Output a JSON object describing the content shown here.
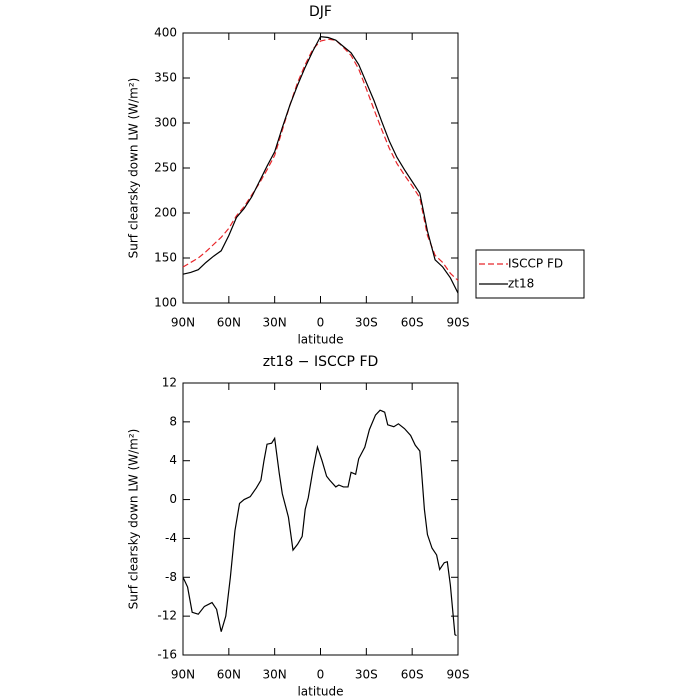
{
  "chart_data": [
    {
      "type": "line",
      "title": "DJF",
      "xlabel": "latitude",
      "ylabel": "Surf clearsky down LW (W/m²)",
      "x": [
        90,
        85,
        80,
        75,
        70,
        65,
        60,
        55,
        50,
        45,
        40,
        35,
        30,
        25,
        20,
        15,
        10,
        5,
        0,
        -5,
        -10,
        -15,
        -20,
        -25,
        -30,
        -35,
        -40,
        -45,
        -50,
        -55,
        -60,
        -65,
        -70,
        -75,
        -80,
        -85,
        -90
      ],
      "series": [
        {
          "name": "ISCCP FD",
          "color": "#e8262a",
          "linestyle": "dashed",
          "values": [
            140,
            145,
            150,
            157,
            165,
            173,
            183,
            197,
            207,
            220,
            233,
            248,
            264,
            292,
            320,
            345,
            365,
            382,
            391,
            393,
            392,
            384,
            375,
            360,
            338,
            315,
            293,
            272,
            255,
            242,
            230,
            217,
            175,
            153,
            145,
            133,
            125
          ]
        },
        {
          "name": "zt18",
          "color": "#000000",
          "linestyle": "solid",
          "values": [
            132,
            134,
            137,
            145,
            152,
            158,
            175,
            195,
            205,
            218,
            235,
            252,
            268,
            295,
            320,
            342,
            362,
            380,
            396,
            395,
            392,
            385,
            378,
            365,
            345,
            325,
            302,
            280,
            262,
            248,
            235,
            222,
            180,
            148,
            140,
            128,
            111
          ]
        }
      ],
      "xlim": [
        90,
        -90
      ],
      "xticks": [
        {
          "value": 90,
          "label": "90N"
        },
        {
          "value": 60,
          "label": "60N"
        },
        {
          "value": 30,
          "label": "30N"
        },
        0,
        {
          "value": -30,
          "label": "30S"
        },
        {
          "value": -60,
          "label": "60S"
        },
        {
          "value": -90,
          "label": "90S"
        }
      ],
      "ylim": [
        100,
        400
      ],
      "yticks": [
        100,
        150,
        200,
        250,
        300,
        350,
        400
      ],
      "legend": "right",
      "grid": false
    },
    {
      "type": "line",
      "title": "zt18 − ISCCP FD",
      "xlabel": "latitude",
      "ylabel": "Surf clearsky down LW (W/m²)",
      "x": [
        90,
        87,
        84,
        80,
        76,
        71,
        68,
        65,
        62,
        59,
        56,
        53,
        50,
        46,
        42,
        39,
        37,
        35,
        32,
        30,
        27,
        25,
        21,
        18,
        15,
        12,
        10,
        8,
        5,
        2,
        -1,
        -4,
        -6,
        -10,
        -12,
        -15,
        -18,
        -20,
        -23,
        -25,
        -29,
        -32,
        -36,
        -39,
        -42,
        -44,
        -48,
        -51,
        -55,
        -59,
        -62,
        -65,
        -66,
        -68,
        -70,
        -73,
        -76,
        -78,
        -81,
        -83,
        -85,
        -88,
        -89
      ],
      "series": [
        {
          "color": "#000000",
          "linestyle": "solid",
          "values": [
            -8,
            -9,
            -11.6,
            -11.8,
            -11,
            -10.6,
            -11.3,
            -13.6,
            -12,
            -8,
            -3.2,
            -0.4,
            0,
            0.3,
            1.2,
            2,
            4,
            5.7,
            5.8,
            6.3,
            2.7,
            0.6,
            -1.8,
            -5.2,
            -4.6,
            -3.8,
            -1,
            0.2,
            3,
            5.4,
            4,
            2.4,
            2,
            1.3,
            1.5,
            1.3,
            1.3,
            2.8,
            2.6,
            4.2,
            5.4,
            7.2,
            8.7,
            9.2,
            9,
            7.7,
            7.5,
            7.8,
            7.3,
            6.6,
            5.6,
            5,
            3.2,
            -1,
            -3.6,
            -5,
            -5.7,
            -7.2,
            -6.5,
            -6.4,
            -8.8,
            -13.9,
            -14
          ]
        }
      ],
      "xlim": [
        90,
        -90
      ],
      "xticks": [
        {
          "value": 90,
          "label": "90N"
        },
        {
          "value": 60,
          "label": "60N"
        },
        {
          "value": 30,
          "label": "30N"
        },
        0,
        {
          "value": -30,
          "label": "30S"
        },
        {
          "value": -60,
          "label": "60S"
        },
        {
          "value": -90,
          "label": "90S"
        }
      ],
      "ylim": [
        -16,
        12
      ],
      "yticks": [
        -16,
        -12,
        -8,
        -4,
        0,
        4,
        8,
        12
      ],
      "grid": false
    }
  ]
}
